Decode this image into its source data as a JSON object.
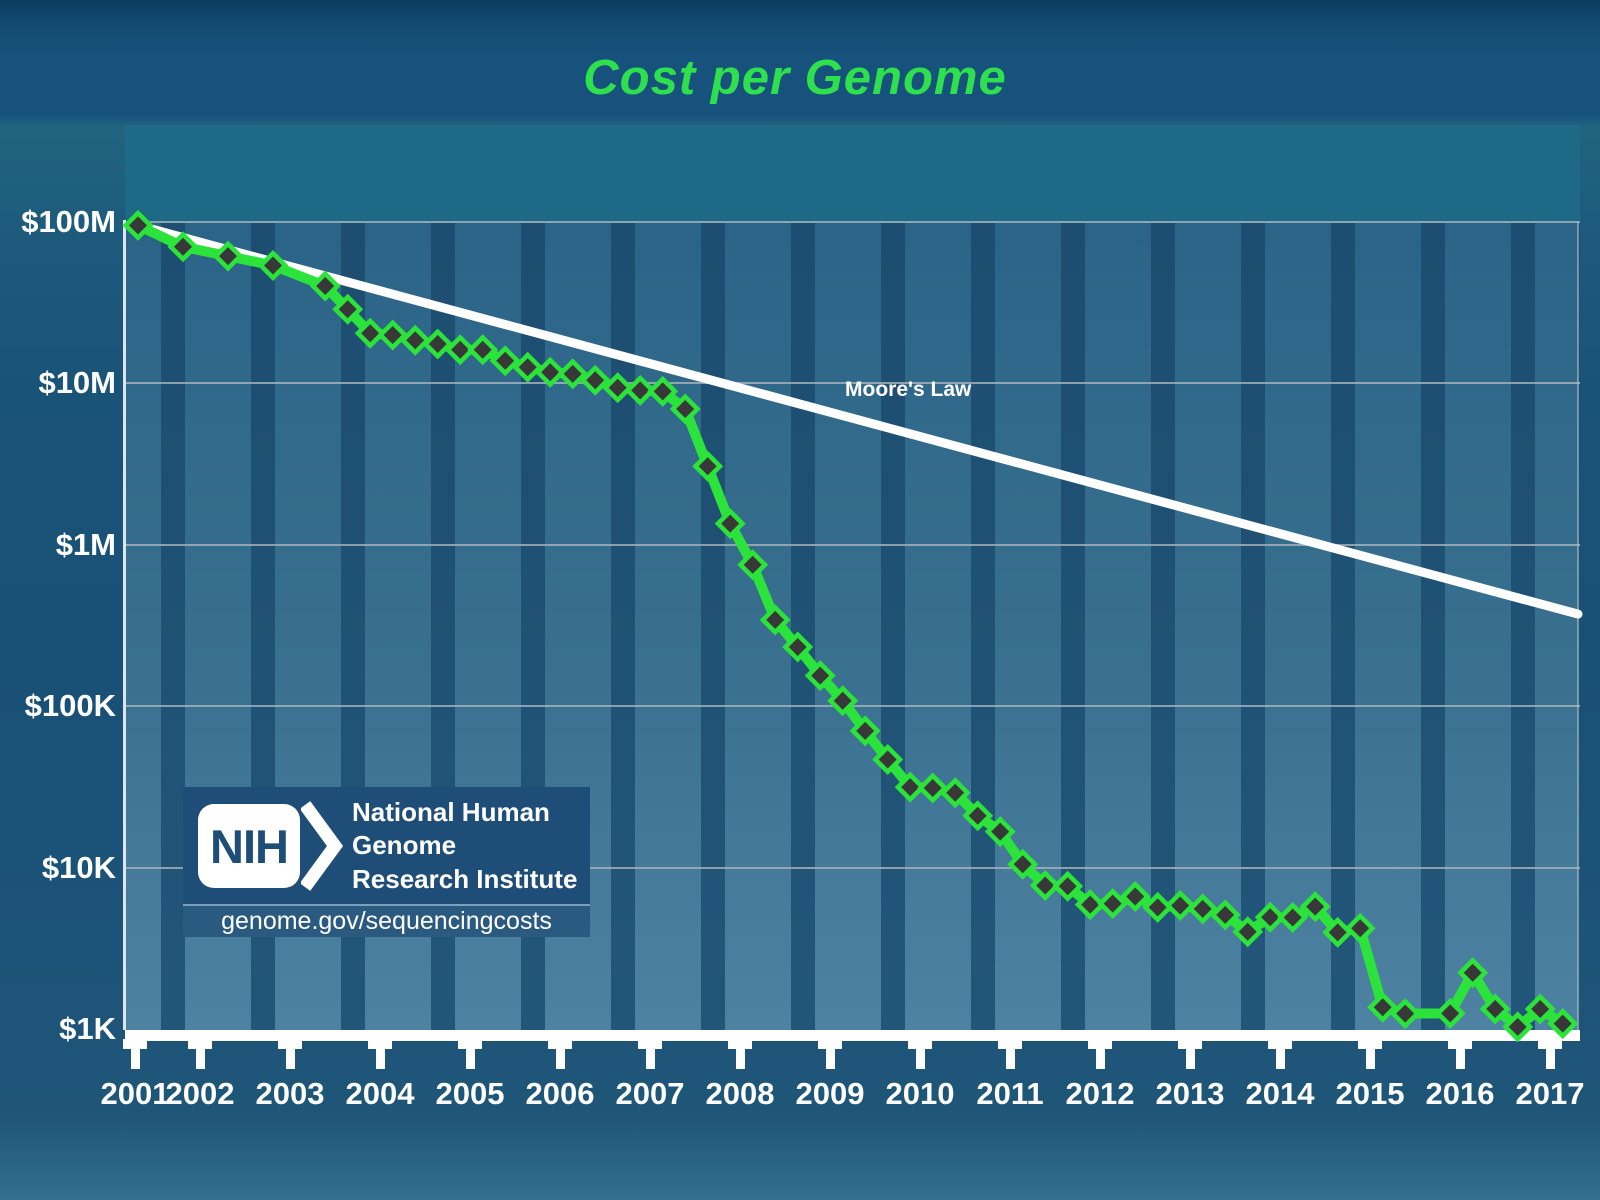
{
  "title": {
    "text": "Cost per Genome",
    "color": "#2ee04e"
  },
  "branding": {
    "org_abbr": "NIH",
    "org_line1": "National Human Genome",
    "org_line2": "Research Institute",
    "url": "genome.gov/sequencingcosts"
  },
  "chart_data": {
    "type": "line",
    "title": "Cost per Genome",
    "y_axis": {
      "scale": "log",
      "range_usd": [
        1000,
        100000000
      ],
      "labels": [
        {
          "text": "$100M",
          "value": 100000000
        },
        {
          "text": "$10M",
          "value": 10000000
        },
        {
          "text": "$1M",
          "value": 1000000
        },
        {
          "text": "$100K",
          "value": 100000
        },
        {
          "text": "$10K",
          "value": 10000
        },
        {
          "text": "$1K",
          "value": 1000
        }
      ]
    },
    "x_axis": {
      "years": [
        2001,
        2002,
        2003,
        2004,
        2005,
        2006,
        2007,
        2008,
        2009,
        2010,
        2011,
        2012,
        2013,
        2014,
        2015,
        2016,
        2017
      ]
    },
    "grid": "horizontal-decades",
    "legend_position": "none",
    "point_format": [
      "date",
      "decimal_year",
      "cost_usd"
    ],
    "series": [
      {
        "name": "Cost per Genome",
        "color": "#2be33a",
        "marker": "diamond",
        "marker_fill": "#383838",
        "points": [
          [
            "Sep 2001",
            2001.75,
            95263072
          ],
          [
            "Mar 2002",
            2002.25,
            70175437
          ],
          [
            "Sep 2002",
            2002.75,
            61448422
          ],
          [
            "Mar 2003",
            2003.25,
            53751684
          ],
          [
            "Oct 2003",
            2003.83,
            40157554
          ],
          [
            "Jan 2004",
            2004.08,
            28780376
          ],
          [
            "Apr 2004",
            2004.33,
            20442576
          ],
          [
            "Jul 2004",
            2004.58,
            19934346
          ],
          [
            "Oct 2004",
            2004.83,
            18519312
          ],
          [
            "Jan 2005",
            2005.08,
            17534970
          ],
          [
            "Apr 2005",
            2005.33,
            16159699
          ],
          [
            "Jul 2005",
            2005.58,
            16180224
          ],
          [
            "Oct 2005",
            2005.83,
            13801124
          ],
          [
            "Jan 2006",
            2006.08,
            12585658
          ],
          [
            "Apr 2006",
            2006.33,
            11732535
          ],
          [
            "Jul 2006",
            2006.58,
            11455315
          ],
          [
            "Oct 2006",
            2006.83,
            10474556
          ],
          [
            "Jan 2007",
            2007.08,
            9408739
          ],
          [
            "Apr 2007",
            2007.33,
            9047003
          ],
          [
            "Jul 2007",
            2007.58,
            8927342
          ],
          [
            "Oct 2007",
            2007.83,
            6938643
          ],
          [
            "Jan 2008",
            2008.08,
            3063820
          ],
          [
            "Apr 2008",
            2008.33,
            1352982
          ],
          [
            "Jul 2008",
            2008.58,
            752080
          ],
          [
            "Oct 2008",
            2008.83,
            342502
          ],
          [
            "Jan 2009",
            2009.08,
            232735
          ],
          [
            "Apr 2009",
            2009.33,
            154714
          ],
          [
            "Jul 2009",
            2009.58,
            108065
          ],
          [
            "Oct 2009",
            2009.83,
            70333
          ],
          [
            "Jan 2010",
            2010.08,
            46774
          ],
          [
            "Apr 2010",
            2010.33,
            31512
          ],
          [
            "Jul 2010",
            2010.58,
            31125
          ],
          [
            "Oct 2010",
            2010.83,
            29092
          ],
          [
            "Jan 2011",
            2011.08,
            20963
          ],
          [
            "Apr 2011",
            2011.33,
            16712
          ],
          [
            "Jul 2011",
            2011.58,
            10497
          ],
          [
            "Oct 2011",
            2011.83,
            7743
          ],
          [
            "Jan 2012",
            2012.08,
            7666
          ],
          [
            "Apr 2012",
            2012.33,
            5901
          ],
          [
            "Jul 2012",
            2012.58,
            5985
          ],
          [
            "Oct 2012",
            2012.83,
            6618
          ],
          [
            "Jan 2013",
            2013.08,
            5671
          ],
          [
            "Apr 2013",
            2013.33,
            5826
          ],
          [
            "Jul 2013",
            2013.58,
            5550
          ],
          [
            "Oct 2013",
            2013.83,
            5096
          ],
          [
            "Jan 2014",
            2014.08,
            4008
          ],
          [
            "Apr 2014",
            2014.33,
            4920
          ],
          [
            "Jul 2014",
            2014.58,
            4905
          ],
          [
            "Oct 2014",
            2014.83,
            5731
          ],
          [
            "Jan 2015",
            2015.08,
            3970
          ],
          [
            "Apr 2015",
            2015.33,
            4211
          ],
          [
            "Jul 2015",
            2015.58,
            1363
          ],
          [
            "Oct 2015",
            2015.83,
            1245
          ],
          [
            "Apr 2016",
            2016.33,
            1250
          ],
          [
            "Jul 2016",
            2016.58,
            2230
          ],
          [
            "Oct 2016",
            2016.83,
            1330
          ],
          [
            "Jan 2017",
            2017.08,
            1030
          ],
          [
            "Apr 2017",
            2017.33,
            1330
          ],
          [
            "Jul 2017",
            2017.58,
            1080
          ]
        ]
      }
    ],
    "reference_line": {
      "label": "Moore's Law",
      "color": "#ffffff",
      "start_decimal_year": 2001.75,
      "start_value_usd": 95263072,
      "halving_period_years": 2,
      "end_decimal_year": 2017.75
    }
  }
}
